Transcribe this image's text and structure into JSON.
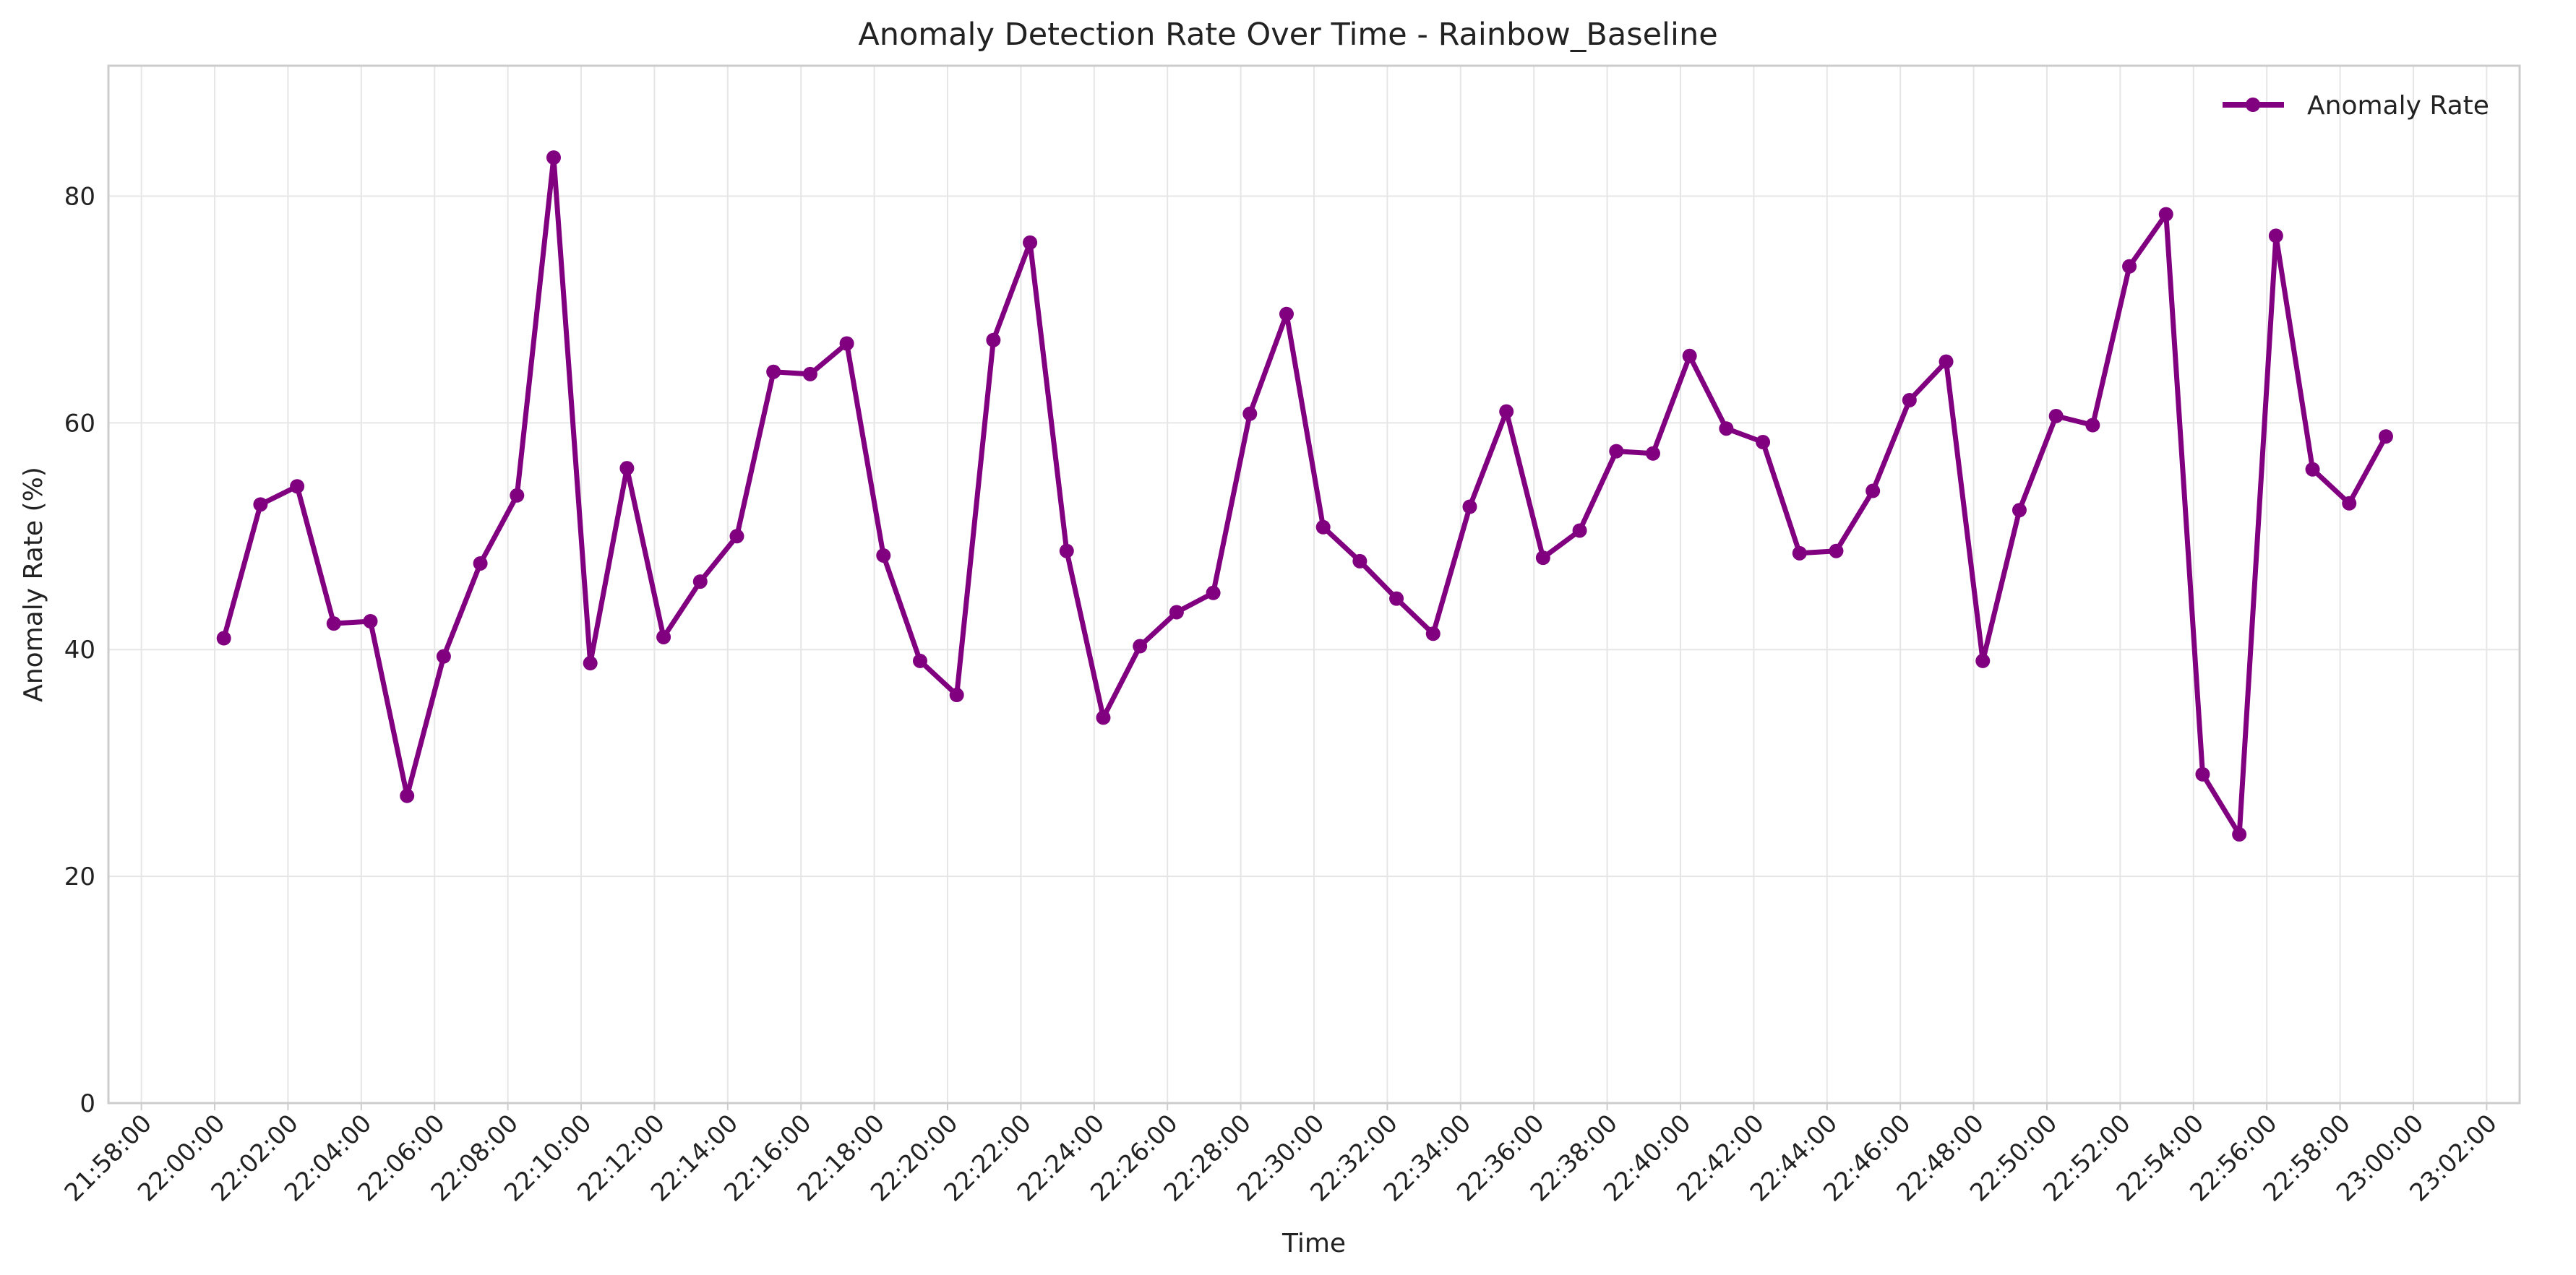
{
  "chart_data": {
    "type": "line",
    "title": "Anomaly Detection Rate Over Time - Rainbow_Baseline",
    "xlabel": "Time",
    "ylabel": "Anomaly Rate (%)",
    "ylim": [
      0,
      91.5
    ],
    "xlim": [
      "21:57:06",
      "23:02:54"
    ],
    "grid": true,
    "legend_position": "top-right",
    "color": "#800080",
    "x_ticks": [
      "21:58:00",
      "22:00:00",
      "22:02:00",
      "22:04:00",
      "22:06:00",
      "22:08:00",
      "22:10:00",
      "22:12:00",
      "22:14:00",
      "22:16:00",
      "22:18:00",
      "22:20:00",
      "22:22:00",
      "22:24:00",
      "22:26:00",
      "22:28:00",
      "22:30:00",
      "22:32:00",
      "22:34:00",
      "22:36:00",
      "22:38:00",
      "22:40:00",
      "22:42:00",
      "22:44:00",
      "22:46:00",
      "22:48:00",
      "22:50:00",
      "22:52:00",
      "22:54:00",
      "22:56:00",
      "22:58:00",
      "23:00:00",
      "23:02:00"
    ],
    "y_ticks": [
      0,
      20,
      40,
      60,
      80
    ],
    "series": [
      {
        "name": "Anomaly Rate",
        "x": [
          "22:00:15",
          "22:01:15",
          "22:02:15",
          "22:03:15",
          "22:04:15",
          "22:05:15",
          "22:06:15",
          "22:07:15",
          "22:08:15",
          "22:09:15",
          "22:10:15",
          "22:11:15",
          "22:12:15",
          "22:13:15",
          "22:14:15",
          "22:15:15",
          "22:16:15",
          "22:17:15",
          "22:18:15",
          "22:19:15",
          "22:20:15",
          "22:21:15",
          "22:22:15",
          "22:23:15",
          "22:24:15",
          "22:25:15",
          "22:26:15",
          "22:27:15",
          "22:28:15",
          "22:29:15",
          "22:30:15",
          "22:31:15",
          "22:32:15",
          "22:33:15",
          "22:34:15",
          "22:35:15",
          "22:36:15",
          "22:37:15",
          "22:38:15",
          "22:39:15",
          "22:40:15",
          "22:41:15",
          "22:42:15",
          "22:43:15",
          "22:44:15",
          "22:45:15",
          "22:46:15",
          "22:47:15",
          "22:48:15",
          "22:49:15",
          "22:50:15",
          "22:51:15",
          "22:52:15",
          "22:53:15",
          "22:54:15",
          "22:55:15",
          "22:56:15",
          "22:57:15",
          "22:58:15",
          "22:59:15"
        ],
        "values": [
          41.0,
          52.8,
          54.4,
          42.3,
          42.5,
          27.1,
          39.4,
          47.6,
          53.6,
          83.4,
          38.8,
          56.0,
          41.1,
          46.0,
          50.0,
          64.5,
          64.3,
          67.0,
          48.3,
          39.0,
          36.0,
          67.3,
          75.9,
          48.7,
          34.0,
          40.3,
          43.3,
          45.0,
          60.8,
          69.6,
          50.8,
          47.8,
          44.5,
          41.4,
          52.6,
          61.0,
          48.1,
          50.5,
          57.5,
          57.3,
          65.9,
          59.5,
          58.3,
          48.5,
          48.7,
          54.0,
          62.0,
          65.4,
          39.0,
          52.3,
          60.6,
          59.8,
          73.8,
          78.4,
          29.0,
          23.7,
          76.5,
          55.9,
          52.9,
          58.8
        ]
      }
    ]
  }
}
